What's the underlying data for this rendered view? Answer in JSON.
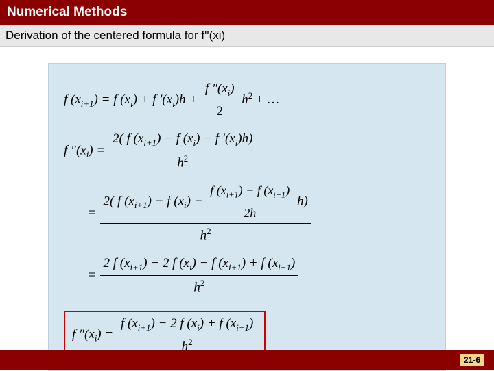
{
  "header": {
    "title": "Numerical Methods"
  },
  "subheader": {
    "text": "Derivation of the centered formula for f''(xi)"
  },
  "math": {
    "eq1_lhs": "f (x",
    "eq1_sub1": "i+1",
    "eq1_mid1": ") = f (x",
    "eq1_sub2": "i",
    "eq1_mid2": ") + f ′(x",
    "eq1_sub3": "i",
    "eq1_mid3": ")h + ",
    "eq1_frac_num_a": "f ″(x",
    "eq1_frac_num_sub": "i",
    "eq1_frac_num_b": ")",
    "eq1_frac_den": "2",
    "eq1_tail": " h",
    "eq1_sup": "2",
    "eq1_dots": " + …",
    "eq2_lhs": "f ″(x",
    "eq2_sub1": "i",
    "eq2_mid1": ") = ",
    "eq2_num_a": "2( f (x",
    "eq2_num_sub1": "i+1",
    "eq2_num_b": ") − f (x",
    "eq2_num_sub2": "i",
    "eq2_num_c": ") − f ′(x",
    "eq2_num_sub3": "i",
    "eq2_num_d": ")h)",
    "eq2_den": "h",
    "eq2_den_sup": "2",
    "eq3_lead": "= ",
    "eq3_num_a": "2( f (x",
    "eq3_num_sub1": "i+1",
    "eq3_num_b": ") − f (x",
    "eq3_num_sub2": "i",
    "eq3_num_c": ") − ",
    "eq3_inner_num_a": "f (x",
    "eq3_inner_num_sub1": "i+1",
    "eq3_inner_num_b": ") − f (x",
    "eq3_inner_num_sub2": "i−1",
    "eq3_inner_num_c": ")",
    "eq3_inner_den": "2h",
    "eq3_num_tail": " h)",
    "eq3_den": "h",
    "eq3_den_sup": "2",
    "eq4_lead": "= ",
    "eq4_num_a": "2 f (x",
    "eq4_num_sub1": "i+1",
    "eq4_num_b": ") − 2 f (x",
    "eq4_num_sub2": "i",
    "eq4_num_c": ") − f (x",
    "eq4_num_sub3": "i+1",
    "eq4_num_d": ") + f (x",
    "eq4_num_sub4": "i−1",
    "eq4_num_e": ")",
    "eq4_den": "h",
    "eq4_den_sup": "2",
    "eq5_lhs": "f ″(x",
    "eq5_sub1": "i",
    "eq5_mid1": ") = ",
    "eq5_num_a": "f (x",
    "eq5_num_sub1": "i+1",
    "eq5_num_b": ") − 2 f (x",
    "eq5_num_sub2": "i",
    "eq5_num_c": ") + f (x",
    "eq5_num_sub3": "i−1",
    "eq5_num_d": ")",
    "eq5_den": "h",
    "eq5_den_sup": "2"
  },
  "footer": {
    "page": "21-6"
  },
  "colors": {
    "header_bg": "#8b0000",
    "header_text": "#ffffff",
    "subheader_bg": "#e8e8e8",
    "mathbox_bg": "#d5e6f0",
    "box_border": "#d10000",
    "pagenum_bg": "#f5d68a"
  }
}
